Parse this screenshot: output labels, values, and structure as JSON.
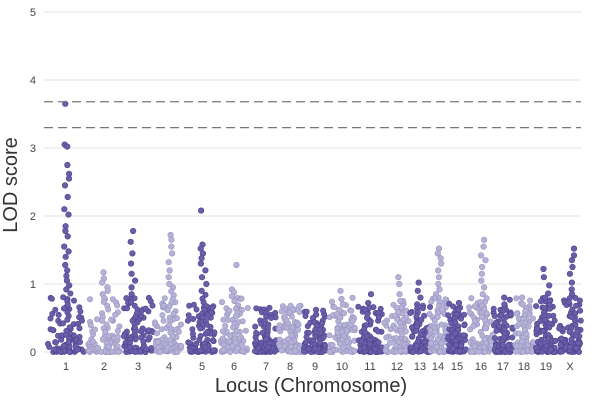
{
  "chart_data": {
    "type": "scatter",
    "subtype": "manhattan",
    "title": "",
    "xlabel": "Locus (Chromosome)",
    "ylabel": "LOD score",
    "ylim": [
      0,
      5
    ],
    "yticks": [
      0,
      1,
      2,
      3,
      4,
      5
    ],
    "thresholds": [
      3.68,
      3.3
    ],
    "colors": {
      "dark": "#6a5ea8",
      "light": "#b6b2d6",
      "threshold_line": "#777777",
      "grid": "#e3e3e3"
    },
    "chromosomes": [
      {
        "label": "1",
        "shade": "dark",
        "peak": 3.65,
        "tops": [
          3.65,
          3.05,
          3.02,
          2.75,
          2.62,
          2.55,
          2.45,
          2.28,
          2.1,
          2.02,
          1.85,
          1.78,
          1.7,
          1.55,
          1.48,
          1.4,
          1.28,
          1.2,
          1.12,
          1.05,
          0.98,
          0.92
        ]
      },
      {
        "label": "2",
        "shade": "light",
        "peak": 1.17,
        "tops": [
          1.17,
          1.08,
          1.02,
          0.95,
          0.9,
          0.85
        ]
      },
      {
        "label": "3",
        "shade": "dark",
        "peak": 1.78,
        "tops": [
          1.78,
          1.62,
          1.45,
          1.3,
          1.15,
          1.05,
          0.95,
          0.85
        ]
      },
      {
        "label": "4",
        "shade": "light",
        "peak": 1.72,
        "tops": [
          1.72,
          1.65,
          1.55,
          1.45,
          1.32,
          1.2,
          1.1,
          1.0,
          0.95
        ]
      },
      {
        "label": "5",
        "shade": "dark",
        "peak": 2.08,
        "tops": [
          2.08,
          1.58,
          1.52,
          1.45,
          1.38,
          1.3,
          1.2,
          1.1,
          1.0,
          0.9
        ]
      },
      {
        "label": "6",
        "shade": "light",
        "peak": 1.28,
        "tops": [
          1.28,
          0.92,
          0.88,
          0.82,
          0.75
        ]
      },
      {
        "label": "7",
        "shade": "dark",
        "peak": 0.65,
        "tops": [
          0.65,
          0.58,
          0.52
        ]
      },
      {
        "label": "8",
        "shade": "light",
        "peak": 0.68,
        "tops": [
          0.68,
          0.62,
          0.58
        ]
      },
      {
        "label": "9",
        "shade": "dark",
        "peak": 0.62,
        "tops": [
          0.62,
          0.55,
          0.5
        ]
      },
      {
        "label": "10",
        "shade": "light",
        "peak": 0.9,
        "tops": [
          0.9,
          0.78,
          0.7,
          0.62
        ]
      },
      {
        "label": "11",
        "shade": "dark",
        "peak": 0.85,
        "tops": [
          0.85,
          0.72,
          0.62
        ]
      },
      {
        "label": "12",
        "shade": "light",
        "peak": 1.1,
        "tops": [
          1.1,
          1.0,
          0.85,
          0.75,
          0.65
        ]
      },
      {
        "label": "13",
        "shade": "dark",
        "peak": 1.02,
        "tops": [
          1.02,
          0.9,
          0.8,
          0.7
        ]
      },
      {
        "label": "14",
        "shade": "light",
        "peak": 1.52,
        "tops": [
          1.52,
          1.45,
          1.38,
          1.3,
          1.2,
          1.1,
          1.0,
          0.92,
          0.85
        ]
      },
      {
        "label": "15",
        "shade": "dark",
        "peak": 0.72,
        "tops": [
          0.72,
          0.62,
          0.55
        ]
      },
      {
        "label": "16",
        "shade": "light",
        "peak": 1.65,
        "tops": [
          1.65,
          1.55,
          1.42,
          1.35,
          1.25,
          1.15,
          1.05,
          0.95,
          0.85
        ]
      },
      {
        "label": "17",
        "shade": "dark",
        "peak": 0.8,
        "tops": [
          0.8,
          0.7,
          0.6
        ]
      },
      {
        "label": "18",
        "shade": "light",
        "peak": 0.8,
        "tops": [
          0.8,
          0.7,
          0.6
        ]
      },
      {
        "label": "19",
        "shade": "dark",
        "peak": 1.22,
        "tops": [
          1.22,
          1.1,
          0.98,
          0.86
        ]
      },
      {
        "label": "X",
        "shade": "dark",
        "peak": 1.52,
        "tops": [
          1.52,
          1.42,
          1.35,
          1.25,
          1.15,
          1.02,
          0.92,
          0.85
        ]
      }
    ]
  }
}
